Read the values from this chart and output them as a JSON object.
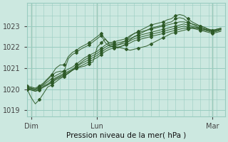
{
  "title": "",
  "xlabel": "Pression niveau de la mer( hPa )",
  "ylabel": "",
  "bg_color": "#cce8e0",
  "grid_color": "#99ccc0",
  "line_color": "#2d5a27",
  "xlim": [
    0,
    48
  ],
  "ylim": [
    1018.7,
    1024.1
  ],
  "yticks": [
    1019,
    1020,
    1021,
    1022,
    1023
  ],
  "xtick_labels": [
    "Dim",
    "Lun",
    "Mar"
  ],
  "xtick_positions": [
    1,
    17,
    45
  ],
  "day_lines": [
    1,
    17,
    45
  ],
  "series": [
    [
      1020.0,
      1019.6,
      1019.3,
      1019.5,
      1019.8,
      1020.1,
      1020.2,
      1020.35,
      1020.5,
      1020.6,
      1020.75,
      1020.9,
      1021.0,
      1021.05,
      1021.1,
      1021.2,
      1021.3,
      1022.0,
      1022.2,
      1022.4,
      1022.1,
      1022.05,
      1022.0,
      1021.95,
      1021.9,
      1021.85,
      1021.9,
      1021.95,
      1022.0,
      1022.05,
      1022.15,
      1022.25,
      1022.35,
      1022.45,
      1022.55,
      1022.65,
      1022.7,
      1022.75,
      1022.8,
      1022.85,
      1022.9,
      1022.9,
      1022.9,
      1022.85,
      1022.8,
      1022.75,
      1022.8,
      1022.85
    ],
    [
      1020.0,
      1020.0,
      1019.9,
      1019.95,
      1020.1,
      1020.2,
      1020.3,
      1020.45,
      1020.55,
      1020.65,
      1020.75,
      1020.9,
      1021.0,
      1021.1,
      1021.2,
      1021.3,
      1021.4,
      1021.5,
      1021.65,
      1021.8,
      1021.9,
      1021.95,
      1022.0,
      1022.05,
      1022.1,
      1022.2,
      1022.3,
      1022.35,
      1022.4,
      1022.45,
      1022.5,
      1022.55,
      1022.6,
      1022.65,
      1022.7,
      1022.75,
      1022.8,
      1022.85,
      1022.9,
      1022.9,
      1022.9,
      1022.85,
      1022.8,
      1022.75,
      1022.7,
      1022.65,
      1022.7,
      1022.75
    ],
    [
      1020.0,
      1019.95,
      1019.9,
      1020.0,
      1020.1,
      1020.2,
      1020.35,
      1020.5,
      1020.6,
      1020.7,
      1020.8,
      1020.9,
      1021.05,
      1021.2,
      1021.3,
      1021.4,
      1021.5,
      1021.6,
      1021.75,
      1021.9,
      1022.0,
      1022.05,
      1022.1,
      1022.15,
      1022.2,
      1022.3,
      1022.4,
      1022.45,
      1022.5,
      1022.55,
      1022.6,
      1022.65,
      1022.7,
      1022.75,
      1022.8,
      1022.85,
      1022.9,
      1022.95,
      1023.0,
      1022.95,
      1022.95,
      1022.9,
      1022.85,
      1022.8,
      1022.75,
      1022.7,
      1022.75,
      1022.8
    ],
    [
      1020.05,
      1020.0,
      1019.95,
      1020.05,
      1020.15,
      1020.25,
      1020.4,
      1020.55,
      1020.65,
      1020.75,
      1020.85,
      1020.95,
      1021.1,
      1021.25,
      1021.4,
      1021.5,
      1021.6,
      1021.7,
      1021.85,
      1022.0,
      1022.1,
      1022.15,
      1022.2,
      1022.25,
      1022.3,
      1022.4,
      1022.5,
      1022.55,
      1022.6,
      1022.65,
      1022.7,
      1022.75,
      1022.8,
      1022.85,
      1022.9,
      1022.95,
      1023.0,
      1023.05,
      1023.1,
      1023.05,
      1023.0,
      1022.95,
      1022.9,
      1022.85,
      1022.8,
      1022.75,
      1022.8,
      1022.85
    ],
    [
      1020.1,
      1020.05,
      1020.0,
      1020.1,
      1020.2,
      1020.35,
      1020.5,
      1020.65,
      1020.75,
      1020.85,
      1020.95,
      1021.05,
      1021.2,
      1021.35,
      1021.5,
      1021.6,
      1021.7,
      1021.8,
      1021.95,
      1022.1,
      1022.2,
      1022.25,
      1022.3,
      1022.35,
      1022.4,
      1022.55,
      1022.65,
      1022.7,
      1022.75,
      1022.8,
      1022.85,
      1022.9,
      1022.95,
      1023.0,
      1023.05,
      1023.1,
      1023.15,
      1023.2,
      1023.2,
      1023.15,
      1023.1,
      1023.05,
      1023.0,
      1022.95,
      1022.85,
      1022.8,
      1022.85,
      1022.9
    ],
    [
      1020.15,
      1020.1,
      1020.05,
      1020.15,
      1020.3,
      1020.5,
      1020.7,
      1021.0,
      1021.15,
      1021.15,
      1021.55,
      1021.75,
      1021.85,
      1022.0,
      1022.1,
      1022.2,
      1022.35,
      1022.5,
      1022.65,
      1022.35,
      1022.2,
      1022.15,
      1022.1,
      1022.2,
      1022.3,
      1022.5,
      1022.65,
      1022.75,
      1022.85,
      1022.95,
      1023.05,
      1023.1,
      1023.15,
      1023.2,
      1023.3,
      1023.35,
      1023.5,
      1023.55,
      1023.5,
      1023.35,
      1023.2,
      1023.1,
      1023.0,
      1022.9,
      1022.85,
      1022.8,
      1022.85,
      1022.9
    ],
    [
      1020.05,
      1020.05,
      1020.0,
      1020.1,
      1020.25,
      1020.45,
      1020.65,
      1020.8,
      1020.85,
      1020.85,
      1021.45,
      1021.65,
      1021.75,
      1021.9,
      1022.0,
      1022.1,
      1022.25,
      1022.4,
      1022.55,
      1022.2,
      1022.05,
      1022.0,
      1021.95,
      1022.05,
      1022.15,
      1022.35,
      1022.5,
      1022.6,
      1022.7,
      1022.8,
      1022.9,
      1022.95,
      1023.0,
      1023.05,
      1023.15,
      1023.2,
      1023.35,
      1023.4,
      1023.35,
      1023.2,
      1023.1,
      1023.0,
      1022.9,
      1022.85,
      1022.8,
      1022.75,
      1022.8,
      1022.85
    ]
  ]
}
